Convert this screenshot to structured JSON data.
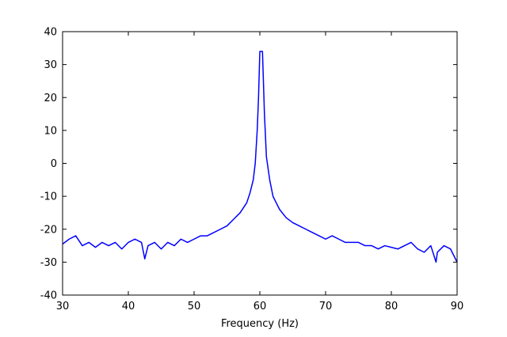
{
  "chart_data": {
    "type": "line",
    "title": "",
    "xlabel": "Frequency (Hz)",
    "ylabel": "",
    "xlim": [
      30,
      90
    ],
    "ylim": [
      -40,
      40
    ],
    "x_ticks": [
      30,
      40,
      50,
      60,
      70,
      80,
      90
    ],
    "y_ticks": [
      40,
      30,
      20,
      10,
      0,
      -10,
      -20,
      -30,
      -40
    ],
    "grid": false,
    "legend": "none",
    "series": [
      {
        "color": "#0000ff",
        "x": [
          30,
          31,
          32,
          33,
          34,
          35,
          36,
          37,
          38,
          39,
          40,
          41,
          42,
          42.5,
          43,
          44,
          45,
          46,
          47,
          48,
          49,
          50,
          51,
          52,
          53,
          54,
          55,
          56,
          57,
          58,
          58.5,
          59,
          59.3,
          59.6,
          59.8,
          60,
          60.2,
          60.4,
          60.7,
          61,
          61.5,
          62,
          63,
          64,
          65,
          66,
          67,
          68,
          69,
          70,
          71,
          72,
          73,
          74,
          75,
          76,
          77,
          78,
          79,
          80,
          81,
          82,
          83,
          84,
          85,
          86,
          86.8,
          87,
          88,
          89,
          90
        ],
        "y": [
          -24.5,
          -23,
          -22,
          -25,
          -24,
          -25.5,
          -24,
          -25,
          -24,
          -26,
          -24,
          -23,
          -24,
          -29,
          -25,
          -24,
          -26,
          -24,
          -25,
          -23,
          -24,
          -23,
          -22,
          -22,
          -21,
          -20,
          -19,
          -17,
          -15,
          -12,
          -9,
          -5,
          0,
          10,
          20,
          34,
          34,
          34,
          15,
          2,
          -5,
          -10,
          -14,
          -16.5,
          -18,
          -19,
          -20,
          -21,
          -22,
          -23,
          -22,
          -23,
          -24,
          -24,
          -24,
          -25,
          -25,
          -26,
          -25,
          -25.5,
          -26,
          -25,
          -24,
          -26,
          -27,
          -25,
          -30,
          -27,
          -25,
          -26,
          -30
        ]
      }
    ]
  }
}
